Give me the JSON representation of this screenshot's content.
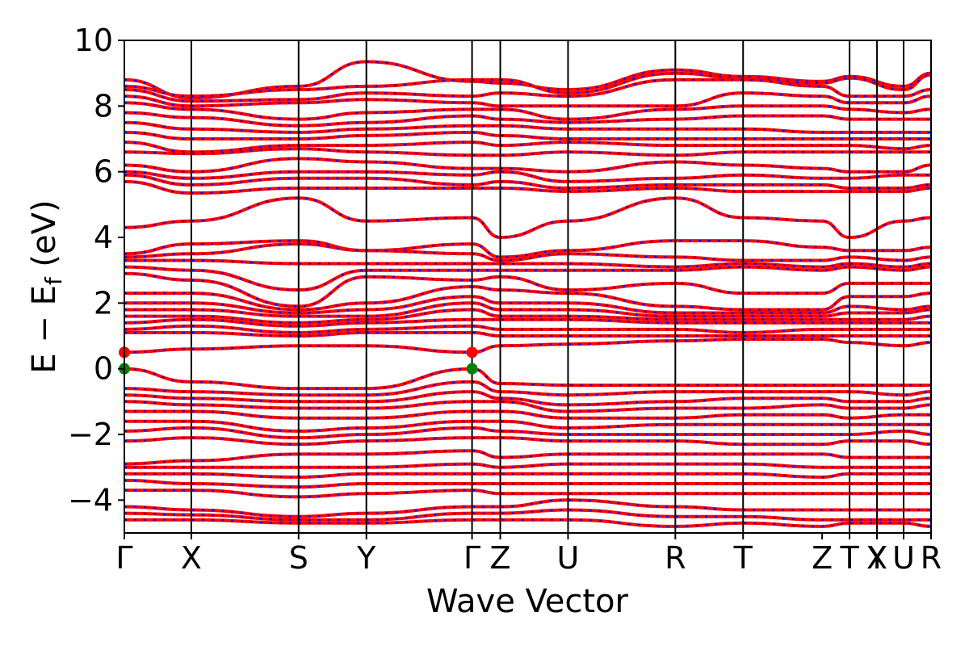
{
  "chart_data": {
    "type": "line",
    "xlabel": "Wave Vector",
    "ylabel": "E − E",
    "ylabel_sub": "f",
    "ylabel_unit": " (eV)",
    "ylim": [
      -5,
      10
    ],
    "y_ticks": [
      -4,
      -2,
      0,
      2,
      4,
      6,
      8,
      10
    ],
    "y_tick_labels": [
      "−4",
      "−2",
      "0",
      "2",
      "4",
      "6",
      "8",
      "10"
    ],
    "xlim": [
      0,
      1
    ],
    "kpoints": [
      {
        "label": "Γ",
        "x": 0.0
      },
      {
        "label": "X",
        "x": 0.083
      },
      {
        "label": "S",
        "x": 0.216
      },
      {
        "label": "Y",
        "x": 0.3
      },
      {
        "label": "Γ",
        "x": 0.431
      },
      {
        "label": "Z",
        "x": 0.466
      },
      {
        "label": "U",
        "x": 0.55
      },
      {
        "label": "R",
        "x": 0.683
      },
      {
        "label": "T",
        "x": 0.767
      },
      {
        "label": "Z",
        "x": 0.865
      },
      {
        "label": "T",
        "x": 0.899
      },
      {
        "label": "Y",
        "x": 0.933
      },
      {
        "label": "X",
        "x": 0.933
      },
      {
        "label": "U",
        "x": 0.966
      },
      {
        "label": "R",
        "x": 1.0
      }
    ],
    "kpoint_vertical_lines": [
      0.083,
      0.216,
      0.3,
      0.431,
      0.466,
      0.55,
      0.683,
      0.767,
      0.899,
      0.933,
      0.966
    ],
    "band_colors": {
      "primary": "#ff0000",
      "overlay": "#0000ff"
    },
    "band_edges": [
      {
        "name": "CBM",
        "x": [
          0.0,
          0.431
        ],
        "y": 0.5,
        "color": "#ff0000"
      },
      {
        "name": "VBM",
        "x": [
          0.0,
          0.431
        ],
        "y": 0.0,
        "color": "#008000"
      }
    ],
    "series": [
      {
        "knots": [
          8.8,
          8.25,
          8.6,
          9.35,
          8.75,
          8.7,
          8.5,
          9.1,
          8.9,
          8.75,
          8.9,
          8.6,
          9.0
        ]
      },
      {
        "knots": [
          8.6,
          8.3,
          8.5,
          8.6,
          8.8,
          8.8,
          8.4,
          9.0,
          8.85,
          8.7,
          8.85,
          8.5,
          8.95
        ]
      },
      {
        "knots": [
          8.5,
          8.15,
          8.2,
          8.4,
          8.3,
          8.4,
          8.3,
          8.8,
          8.8,
          8.6,
          8.3,
          8.3,
          8.5
        ]
      },
      {
        "knots": [
          8.3,
          8.0,
          8.1,
          8.2,
          8.1,
          8.0,
          8.0,
          8.0,
          8.4,
          8.3,
          8.1,
          8.1,
          8.3
        ]
      },
      {
        "knots": [
          8.1,
          7.9,
          7.6,
          7.8,
          7.9,
          7.9,
          7.6,
          7.9,
          8.0,
          8.0,
          7.9,
          7.8,
          7.9
        ]
      },
      {
        "knots": [
          7.8,
          7.65,
          7.4,
          7.5,
          7.7,
          7.6,
          7.5,
          7.6,
          7.7,
          7.7,
          7.6,
          7.6,
          7.6
        ]
      },
      {
        "knots": [
          7.5,
          7.3,
          7.2,
          7.3,
          7.4,
          7.4,
          7.3,
          7.3,
          7.3,
          7.2,
          7.2,
          7.2,
          7.2
        ]
      },
      {
        "knots": [
          7.2,
          7.0,
          7.0,
          7.1,
          7.2,
          7.1,
          7.0,
          7.0,
          7.0,
          7.0,
          7.0,
          7.0,
          7.0
        ]
      },
      {
        "knots": [
          6.9,
          6.6,
          6.8,
          6.8,
          6.9,
          6.8,
          6.9,
          6.8,
          6.8,
          6.8,
          6.8,
          6.7,
          6.8
        ]
      },
      {
        "knots": [
          6.6,
          6.55,
          6.7,
          6.6,
          6.5,
          6.5,
          6.6,
          6.5,
          6.6,
          6.6,
          6.6,
          6.6,
          6.6
        ]
      },
      {
        "knots": [
          6.2,
          6.0,
          6.4,
          6.3,
          6.1,
          6.1,
          6.0,
          6.3,
          6.2,
          6.1,
          6.0,
          6.0,
          6.2
        ]
      },
      {
        "knots": [
          6.0,
          5.8,
          6.0,
          6.0,
          5.9,
          6.0,
          5.7,
          5.8,
          5.9,
          5.8,
          5.8,
          5.9,
          5.9
        ]
      },
      {
        "knots": [
          5.9,
          5.6,
          5.8,
          5.8,
          5.6,
          5.7,
          5.5,
          5.6,
          5.6,
          5.6,
          5.5,
          5.5,
          5.6
        ]
      },
      {
        "knots": [
          5.7,
          5.35,
          5.5,
          5.5,
          5.5,
          5.5,
          5.4,
          5.5,
          5.4,
          5.4,
          5.4,
          5.4,
          5.5
        ]
      },
      {
        "knots": [
          4.3,
          4.5,
          5.2,
          4.5,
          4.6,
          4.0,
          4.5,
          5.2,
          4.6,
          4.5,
          4.0,
          4.5,
          4.6
        ]
      },
      {
        "knots": [
          3.5,
          3.8,
          3.9,
          3.6,
          3.8,
          3.4,
          3.6,
          3.9,
          3.9,
          3.7,
          3.6,
          3.6,
          3.7
        ]
      },
      {
        "knots": [
          3.4,
          3.5,
          3.8,
          3.6,
          3.5,
          3.3,
          3.5,
          3.4,
          3.3,
          3.3,
          3.4,
          3.3,
          3.4
        ]
      },
      {
        "knots": [
          3.3,
          3.3,
          3.2,
          3.2,
          3.2,
          3.2,
          3.2,
          3.1,
          3.2,
          3.1,
          3.2,
          3.1,
          3.2
        ]
      },
      {
        "knots": [
          3.1,
          3.0,
          2.4,
          3.0,
          3.0,
          3.0,
          3.0,
          3.0,
          3.1,
          3.0,
          3.1,
          3.0,
          3.1
        ]
      },
      {
        "knots": [
          2.9,
          2.7,
          1.9,
          2.8,
          2.7,
          2.8,
          2.4,
          2.6,
          2.3,
          2.3,
          2.6,
          2.6,
          2.6
        ]
      },
      {
        "knots": [
          2.3,
          2.3,
          1.8,
          2.0,
          2.5,
          2.4,
          2.3,
          1.9,
          1.8,
          1.8,
          2.2,
          2.2,
          2.3
        ]
      },
      {
        "knots": [
          2.0,
          2.0,
          1.7,
          1.8,
          2.2,
          2.0,
          2.0,
          1.7,
          1.7,
          1.7,
          1.9,
          1.8,
          1.9
        ]
      },
      {
        "knots": [
          1.8,
          1.8,
          1.6,
          1.6,
          2.0,
          1.8,
          1.8,
          1.6,
          1.6,
          1.6,
          1.7,
          1.7,
          1.8
        ]
      },
      {
        "knots": [
          1.6,
          1.6,
          1.4,
          1.5,
          1.8,
          1.6,
          1.6,
          1.5,
          1.5,
          1.5,
          1.5,
          1.5,
          1.6
        ]
      },
      {
        "knots": [
          1.4,
          1.5,
          1.3,
          1.4,
          1.5,
          1.5,
          1.5,
          1.4,
          1.4,
          1.4,
          1.4,
          1.4,
          1.4
        ]
      },
      {
        "knots": [
          1.2,
          1.3,
          1.1,
          1.2,
          1.3,
          1.2,
          1.2,
          1.2,
          1.1,
          1.2,
          1.2,
          1.2,
          1.2
        ]
      },
      {
        "knots": [
          1.1,
          1.1,
          1.0,
          1.1,
          1.1,
          1.0,
          1.0,
          1.0,
          1.0,
          1.0,
          1.0,
          1.0,
          1.0
        ]
      },
      {
        "knots": [
          0.5,
          0.6,
          0.7,
          0.7,
          0.5,
          0.7,
          0.75,
          0.85,
          0.9,
          0.9,
          0.8,
          0.7,
          0.8
        ]
      },
      {
        "knots": [
          0.0,
          -0.4,
          -0.6,
          -0.6,
          0.0,
          -0.45,
          -0.5,
          -0.5,
          -0.5,
          -0.5,
          -0.5,
          -0.5,
          -0.5
        ]
      },
      {
        "knots": [
          -0.6,
          -0.7,
          -0.8,
          -0.8,
          -0.4,
          -0.7,
          -0.8,
          -0.7,
          -0.7,
          -0.7,
          -0.7,
          -0.8,
          -0.7
        ]
      },
      {
        "knots": [
          -0.8,
          -0.9,
          -1.0,
          -1.0,
          -0.7,
          -0.9,
          -1.1,
          -1.0,
          -0.9,
          -0.9,
          -1.0,
          -1.0,
          -0.9
        ]
      },
      {
        "knots": [
          -1.0,
          -1.1,
          -1.2,
          -1.2,
          -1.0,
          -1.0,
          -1.3,
          -1.2,
          -1.2,
          -1.1,
          -1.2,
          -1.2,
          -1.1
        ]
      },
      {
        "knots": [
          -1.3,
          -1.3,
          -1.5,
          -1.5,
          -1.3,
          -1.3,
          -1.5,
          -1.5,
          -1.4,
          -1.4,
          -1.5,
          -1.4,
          -1.4
        ]
      },
      {
        "knots": [
          -1.6,
          -1.6,
          -1.9,
          -1.8,
          -1.6,
          -1.6,
          -1.8,
          -1.7,
          -1.7,
          -1.7,
          -1.7,
          -1.7,
          -1.7
        ]
      },
      {
        "knots": [
          -1.9,
          -1.8,
          -2.1,
          -2.0,
          -1.8,
          -1.9,
          -2.0,
          -2.0,
          -2.0,
          -2.0,
          -2.0,
          -1.9,
          -2.0
        ]
      },
      {
        "knots": [
          -2.2,
          -2.1,
          -2.3,
          -2.2,
          -2.1,
          -2.1,
          -2.2,
          -2.2,
          -2.3,
          -2.3,
          -2.2,
          -2.2,
          -2.3
        ]
      },
      {
        "knots": [
          -2.9,
          -2.8,
          -2.6,
          -2.6,
          -2.5,
          -2.7,
          -2.6,
          -2.6,
          -2.6,
          -2.6,
          -2.7,
          -2.7,
          -2.7
        ]
      },
      {
        "knots": [
          -3.0,
          -3.0,
          -3.0,
          -3.0,
          -2.9,
          -3.0,
          -2.9,
          -2.9,
          -2.9,
          -3.0,
          -3.0,
          -3.0,
          -3.0
        ]
      },
      {
        "knots": [
          -3.2,
          -3.2,
          -3.3,
          -3.2,
          -3.2,
          -3.2,
          -3.2,
          -3.2,
          -3.2,
          -3.3,
          -3.2,
          -3.2,
          -3.2
        ]
      },
      {
        "knots": [
          -3.4,
          -3.5,
          -3.6,
          -3.5,
          -3.5,
          -3.5,
          -3.5,
          -3.5,
          -3.5,
          -3.5,
          -3.5,
          -3.5,
          -3.5
        ]
      },
      {
        "knots": [
          -3.7,
          -3.7,
          -3.9,
          -3.8,
          -3.7,
          -3.8,
          -3.8,
          -3.8,
          -3.8,
          -3.8,
          -3.8,
          -3.8,
          -3.8
        ]
      },
      {
        "knots": [
          -4.2,
          -4.3,
          -4.5,
          -4.4,
          -4.2,
          -4.2,
          -4.0,
          -4.2,
          -4.3,
          -4.3,
          -4.3,
          -4.3,
          -4.3
        ]
      },
      {
        "knots": [
          -4.4,
          -4.45,
          -4.6,
          -4.6,
          -4.4,
          -4.4,
          -4.3,
          -4.5,
          -4.5,
          -4.6,
          -4.6,
          -4.6,
          -4.6
        ]
      },
      {
        "knots": [
          -4.6,
          -4.6,
          -4.7,
          -4.7,
          -4.6,
          -4.6,
          -4.6,
          -4.8,
          -4.7,
          -4.8,
          -4.7,
          -4.7,
          -4.8
        ]
      }
    ]
  }
}
